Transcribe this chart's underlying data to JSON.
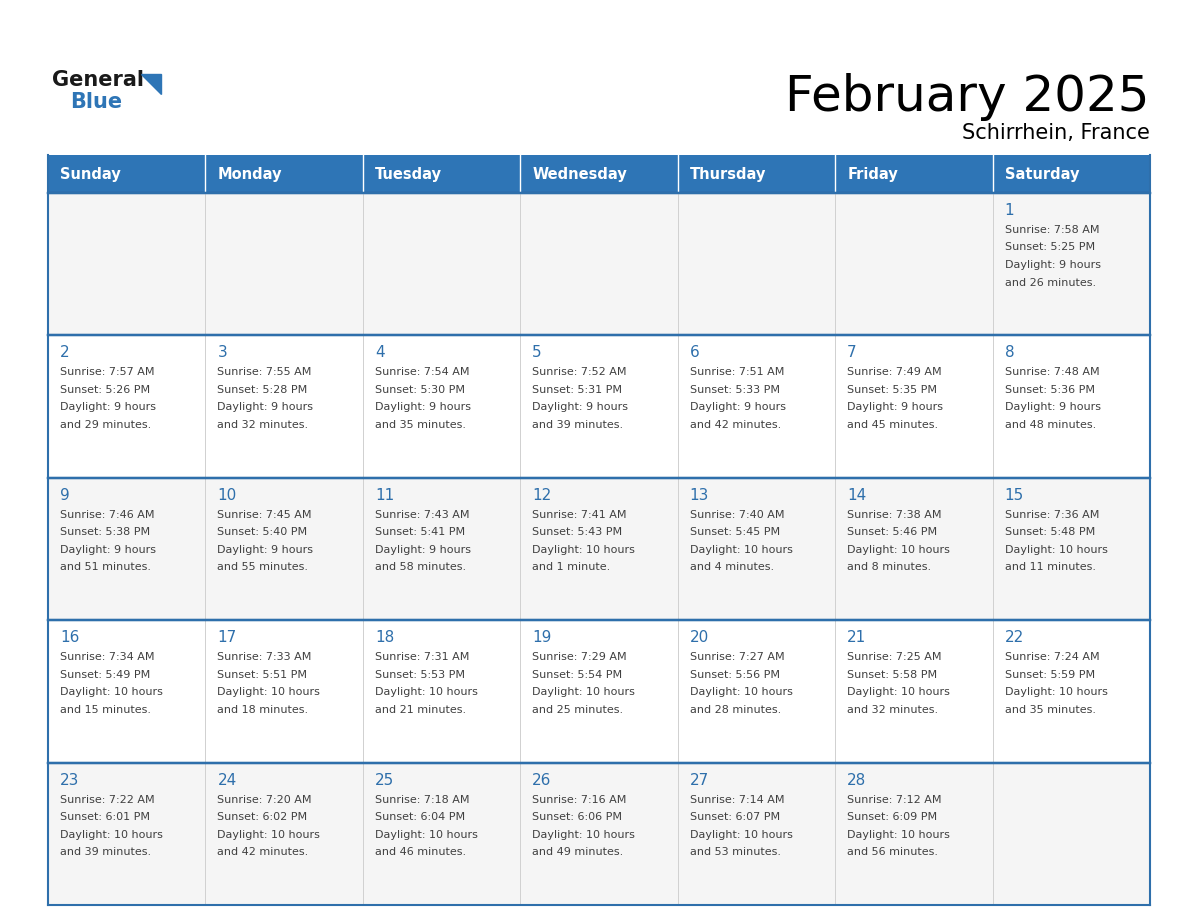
{
  "title": "February 2025",
  "subtitle": "Schirrhein, France",
  "header_bg": "#2E75B6",
  "header_text_color": "#FFFFFF",
  "cell_bg_odd": "#F5F5F5",
  "cell_bg_even": "#FFFFFF",
  "border_color": "#2E6FAB",
  "text_color": "#404040",
  "day_num_color": "#2E6FAB",
  "logo_general_color": "#1a1a1a",
  "logo_blue_color": "#2E75B6",
  "logo_triangle_color": "#2E75B6",
  "days_of_week": [
    "Sunday",
    "Monday",
    "Tuesday",
    "Wednesday",
    "Thursday",
    "Friday",
    "Saturday"
  ],
  "weeks": [
    [
      {
        "day": null,
        "text": ""
      },
      {
        "day": null,
        "text": ""
      },
      {
        "day": null,
        "text": ""
      },
      {
        "day": null,
        "text": ""
      },
      {
        "day": null,
        "text": ""
      },
      {
        "day": null,
        "text": ""
      },
      {
        "day": 1,
        "text": "Sunrise: 7:58 AM\nSunset: 5:25 PM\nDaylight: 9 hours\nand 26 minutes."
      }
    ],
    [
      {
        "day": 2,
        "text": "Sunrise: 7:57 AM\nSunset: 5:26 PM\nDaylight: 9 hours\nand 29 minutes."
      },
      {
        "day": 3,
        "text": "Sunrise: 7:55 AM\nSunset: 5:28 PM\nDaylight: 9 hours\nand 32 minutes."
      },
      {
        "day": 4,
        "text": "Sunrise: 7:54 AM\nSunset: 5:30 PM\nDaylight: 9 hours\nand 35 minutes."
      },
      {
        "day": 5,
        "text": "Sunrise: 7:52 AM\nSunset: 5:31 PM\nDaylight: 9 hours\nand 39 minutes."
      },
      {
        "day": 6,
        "text": "Sunrise: 7:51 AM\nSunset: 5:33 PM\nDaylight: 9 hours\nand 42 minutes."
      },
      {
        "day": 7,
        "text": "Sunrise: 7:49 AM\nSunset: 5:35 PM\nDaylight: 9 hours\nand 45 minutes."
      },
      {
        "day": 8,
        "text": "Sunrise: 7:48 AM\nSunset: 5:36 PM\nDaylight: 9 hours\nand 48 minutes."
      }
    ],
    [
      {
        "day": 9,
        "text": "Sunrise: 7:46 AM\nSunset: 5:38 PM\nDaylight: 9 hours\nand 51 minutes."
      },
      {
        "day": 10,
        "text": "Sunrise: 7:45 AM\nSunset: 5:40 PM\nDaylight: 9 hours\nand 55 minutes."
      },
      {
        "day": 11,
        "text": "Sunrise: 7:43 AM\nSunset: 5:41 PM\nDaylight: 9 hours\nand 58 minutes."
      },
      {
        "day": 12,
        "text": "Sunrise: 7:41 AM\nSunset: 5:43 PM\nDaylight: 10 hours\nand 1 minute."
      },
      {
        "day": 13,
        "text": "Sunrise: 7:40 AM\nSunset: 5:45 PM\nDaylight: 10 hours\nand 4 minutes."
      },
      {
        "day": 14,
        "text": "Sunrise: 7:38 AM\nSunset: 5:46 PM\nDaylight: 10 hours\nand 8 minutes."
      },
      {
        "day": 15,
        "text": "Sunrise: 7:36 AM\nSunset: 5:48 PM\nDaylight: 10 hours\nand 11 minutes."
      }
    ],
    [
      {
        "day": 16,
        "text": "Sunrise: 7:34 AM\nSunset: 5:49 PM\nDaylight: 10 hours\nand 15 minutes."
      },
      {
        "day": 17,
        "text": "Sunrise: 7:33 AM\nSunset: 5:51 PM\nDaylight: 10 hours\nand 18 minutes."
      },
      {
        "day": 18,
        "text": "Sunrise: 7:31 AM\nSunset: 5:53 PM\nDaylight: 10 hours\nand 21 minutes."
      },
      {
        "day": 19,
        "text": "Sunrise: 7:29 AM\nSunset: 5:54 PM\nDaylight: 10 hours\nand 25 minutes."
      },
      {
        "day": 20,
        "text": "Sunrise: 7:27 AM\nSunset: 5:56 PM\nDaylight: 10 hours\nand 28 minutes."
      },
      {
        "day": 21,
        "text": "Sunrise: 7:25 AM\nSunset: 5:58 PM\nDaylight: 10 hours\nand 32 minutes."
      },
      {
        "day": 22,
        "text": "Sunrise: 7:24 AM\nSunset: 5:59 PM\nDaylight: 10 hours\nand 35 minutes."
      }
    ],
    [
      {
        "day": 23,
        "text": "Sunrise: 7:22 AM\nSunset: 6:01 PM\nDaylight: 10 hours\nand 39 minutes."
      },
      {
        "day": 24,
        "text": "Sunrise: 7:20 AM\nSunset: 6:02 PM\nDaylight: 10 hours\nand 42 minutes."
      },
      {
        "day": 25,
        "text": "Sunrise: 7:18 AM\nSunset: 6:04 PM\nDaylight: 10 hours\nand 46 minutes."
      },
      {
        "day": 26,
        "text": "Sunrise: 7:16 AM\nSunset: 6:06 PM\nDaylight: 10 hours\nand 49 minutes."
      },
      {
        "day": 27,
        "text": "Sunrise: 7:14 AM\nSunset: 6:07 PM\nDaylight: 10 hours\nand 53 minutes."
      },
      {
        "day": 28,
        "text": "Sunrise: 7:12 AM\nSunset: 6:09 PM\nDaylight: 10 hours\nand 56 minutes."
      },
      {
        "day": null,
        "text": ""
      }
    ]
  ]
}
